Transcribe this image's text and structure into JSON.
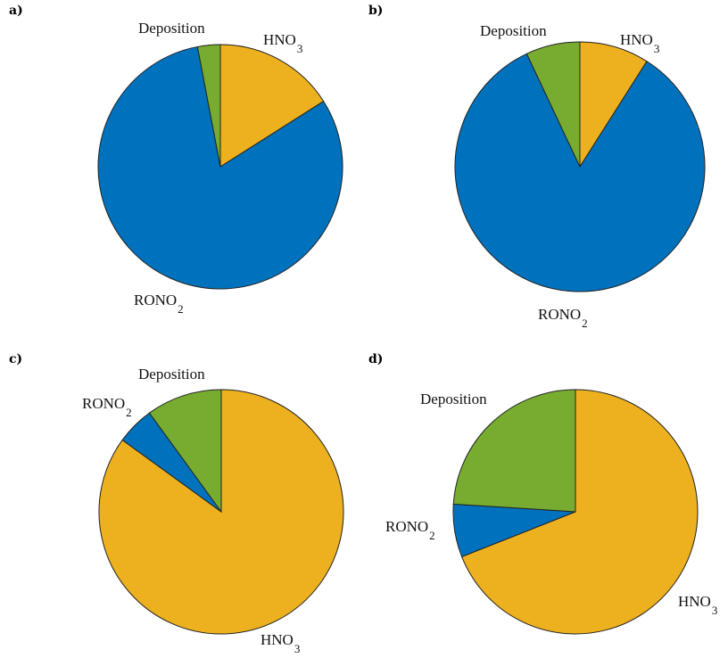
{
  "chart_data": [
    {
      "type": "pie",
      "panel": "a)",
      "slices": [
        {
          "label": "HNO",
          "sub": "3",
          "value": 16,
          "color": "#EDB120"
        },
        {
          "label": "RONO",
          "sub": "2",
          "value": 81,
          "color": "#0072BD"
        },
        {
          "label": "Deposition",
          "sub": "",
          "value": 3,
          "color": "#77AC30"
        }
      ]
    },
    {
      "type": "pie",
      "panel": "b)",
      "slices": [
        {
          "label": "HNO",
          "sub": "3",
          "value": 9,
          "color": "#EDB120"
        },
        {
          "label": "RONO",
          "sub": "2",
          "value": 84,
          "color": "#0072BD"
        },
        {
          "label": "Deposition",
          "sub": "",
          "value": 7,
          "color": "#77AC30"
        }
      ]
    },
    {
      "type": "pie",
      "panel": "c)",
      "slices": [
        {
          "label": "HNO",
          "sub": "3",
          "value": 85,
          "color": "#EDB120"
        },
        {
          "label": "RONO",
          "sub": "2",
          "value": 5,
          "color": "#0072BD"
        },
        {
          "label": "Deposition",
          "sub": "",
          "value": 10,
          "color": "#77AC30"
        }
      ]
    },
    {
      "type": "pie",
      "panel": "d)",
      "slices": [
        {
          "label": "HNO",
          "sub": "3",
          "value": 69,
          "color": "#EDB120"
        },
        {
          "label": "RONO",
          "sub": "2",
          "value": 7,
          "color": "#0072BD"
        },
        {
          "label": "Deposition",
          "sub": "",
          "value": 24,
          "color": "#77AC30"
        }
      ]
    }
  ]
}
